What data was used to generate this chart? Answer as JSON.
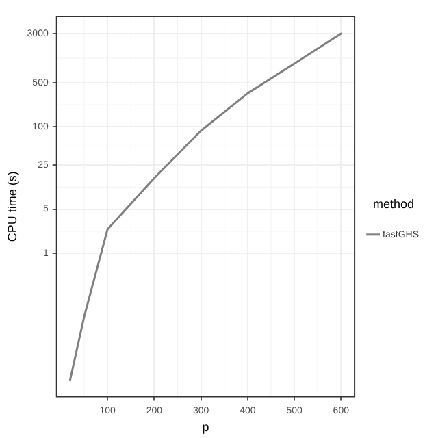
{
  "chart_data": {
    "type": "line",
    "xlabel": "p",
    "ylabel": "CPU time (s)",
    "legend_title": "method",
    "x": [
      20,
      50,
      100,
      200,
      300,
      400,
      500,
      600
    ],
    "series": [
      {
        "name": "fastGHS",
        "color": "#7f7f7f",
        "values": [
          0.01,
          0.1,
          2.4,
          15.5,
          87,
          340,
          1000,
          3000
        ]
      }
    ],
    "xlim": [
      -9,
      629
    ],
    "xticks": [
      100,
      200,
      300,
      400,
      500,
      600
    ],
    "ylim": [
      0.0054,
      5600
    ],
    "yticks": [
      1,
      5,
      25,
      100,
      500,
      3000
    ],
    "log": "y",
    "grid": true,
    "legend": "right",
    "marker": "none",
    "line_style": "solid"
  }
}
